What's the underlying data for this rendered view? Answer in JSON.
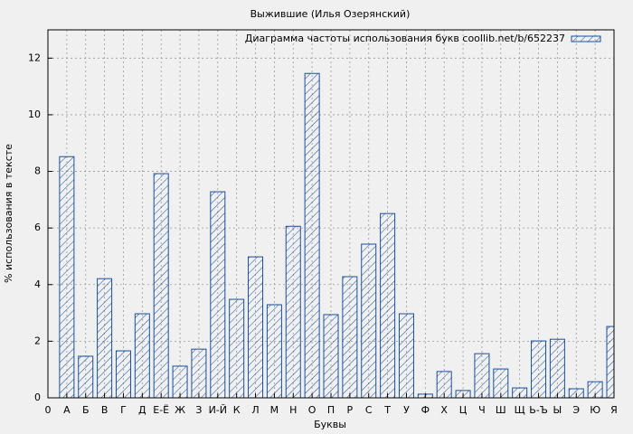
{
  "chart_data": {
    "type": "bar",
    "title": "Выжившие (Илья Озерянский)",
    "x_label": "Буквы",
    "y_label": "% использования в тексте",
    "categories": [
      "0",
      "А",
      "Б",
      "В",
      "Г",
      "Д",
      "Е-Ё",
      "Ж",
      "З",
      "И-Й",
      "К",
      "Л",
      "М",
      "Н",
      "О",
      "П",
      "Р",
      "С",
      "Т",
      "У",
      "Ф",
      "Х",
      "Ц",
      "Ч",
      "Ш",
      "Щ",
      "Ь-Ъ",
      "Ы",
      "Э",
      "Ю",
      "Я"
    ],
    "series": [
      {
        "name": "Диаграмма частоты использования букв coollib.net/b/652237",
        "color": "#1a4f9e",
        "values": [
          null,
          8.52,
          1.47,
          4.21,
          1.66,
          2.97,
          7.92,
          1.12,
          1.72,
          7.28,
          3.48,
          4.98,
          3.29,
          6.06,
          11.46,
          2.94,
          4.28,
          5.43,
          6.51,
          2.97,
          0.13,
          0.93,
          0.26,
          1.56,
          1.02,
          0.35,
          2.01,
          2.07,
          0.32,
          0.57,
          2.52
        ]
      }
    ],
    "ylim": [
      0,
      13
    ],
    "yticks": [
      0,
      2,
      4,
      6,
      8,
      10,
      12
    ],
    "grid": true,
    "legend": "top-right"
  }
}
